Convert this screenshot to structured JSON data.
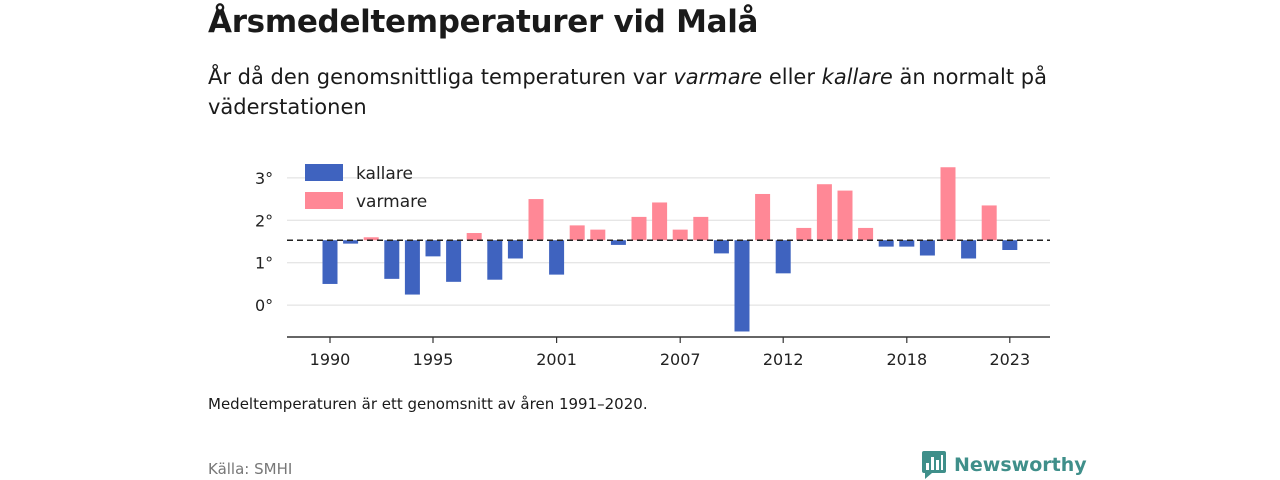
{
  "header": {
    "title": "Årsmedeltemperaturer vid Malå",
    "subtitle_pre": "År då den genomsnittliga temperaturen var ",
    "subtitle_warm": "varmare",
    "subtitle_mid": " eller ",
    "subtitle_cold": "kallare",
    "subtitle_post": " än normalt på väderstationen"
  },
  "footer": {
    "note": "Medeltemperaturen är ett genomsnitt av åren 1991–2020.",
    "source": "Källa: SMHI",
    "brand": "Newsworthy"
  },
  "colors": {
    "colder": "#3f63bf",
    "warmer": "#ff8896",
    "baseline": "#222222",
    "grid": "#dddddd",
    "brand": "#3f8f8a"
  },
  "chart_data": {
    "type": "bar",
    "baseline": 1.53,
    "ylim": [
      -0.75,
      3.35
    ],
    "yticks": [
      0,
      1,
      2,
      3
    ],
    "ytick_labels": [
      "0°",
      "1°",
      "2°",
      "3°"
    ],
    "xticks": [
      1990,
      1995,
      2001,
      2007,
      2012,
      2018,
      2023
    ],
    "xtick_labels": [
      "1990",
      "1995",
      "2001",
      "2007",
      "2012",
      "2018",
      "2023"
    ],
    "legend": {
      "position": "top-left",
      "colder_label": "kallare",
      "warmer_label": "varmare"
    },
    "grid": true,
    "years": [
      1990,
      1991,
      1992,
      1993,
      1994,
      1995,
      1996,
      1997,
      1998,
      1999,
      2000,
      2001,
      2002,
      2003,
      2004,
      2005,
      2006,
      2007,
      2008,
      2009,
      2010,
      2011,
      2012,
      2013,
      2014,
      2015,
      2016,
      2017,
      2018,
      2019,
      2020,
      2021,
      2022,
      2023
    ],
    "values": [
      0.5,
      1.45,
      1.6,
      0.62,
      0.25,
      1.15,
      0.55,
      1.7,
      0.6,
      1.1,
      2.5,
      0.72,
      1.88,
      1.78,
      1.42,
      2.08,
      2.42,
      1.78,
      2.08,
      1.22,
      -0.62,
      2.62,
      0.75,
      1.82,
      2.85,
      2.7,
      1.82,
      1.38,
      1.38,
      1.17,
      3.25,
      1.1,
      2.35,
      1.3
    ]
  }
}
